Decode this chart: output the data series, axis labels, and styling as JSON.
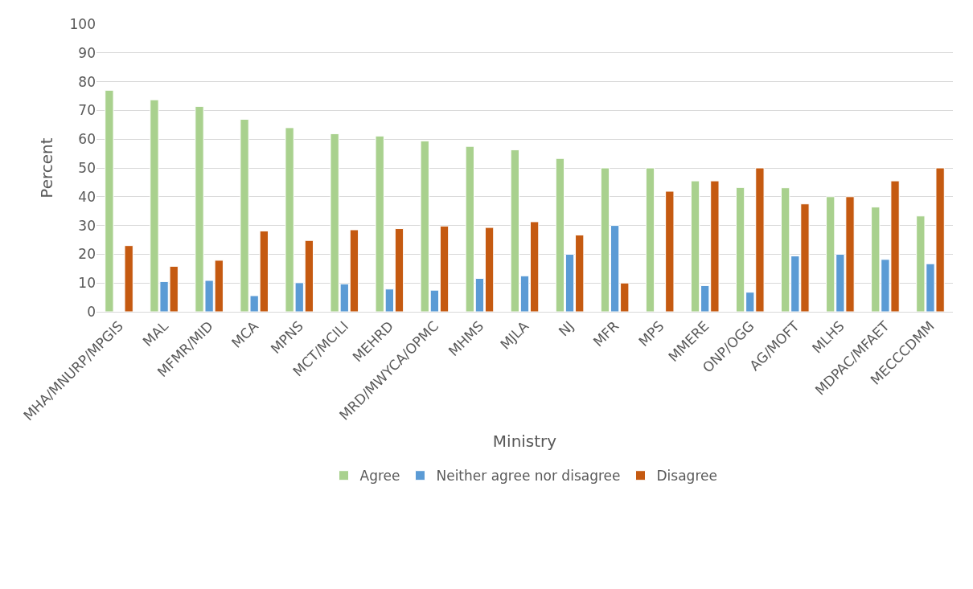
{
  "chart_data": {
    "type": "bar",
    "xlabel": "Ministry",
    "ylabel": "Percent",
    "categories": [
      "MHA/MNURP/MPGIS",
      "MAL",
      "MFMR/MID",
      "MCA",
      "MPNS",
      "MCT/MCILI",
      "MEHRD",
      "MRD/MWYCA/OPMC",
      "MHMS",
      "MJLA",
      "NJ",
      "MFR",
      "MPS",
      "MMERE",
      "ONP/OGG",
      "AG/MOFT",
      "MLHS",
      "MDPAC/MFAET",
      "MECCCDMM"
    ],
    "series": [
      {
        "name": "Agree",
        "color": "#a9d18e",
        "values": [
          77,
          73.7,
          71.4,
          66.9,
          64,
          61.9,
          61.1,
          59.4,
          57.5,
          56.3,
          53.3,
          50,
          50,
          45.5,
          43.2,
          43.1,
          40,
          36.4,
          33.3
        ]
      },
      {
        "name": "Neither agree nor disagree",
        "color": "#5b9bd5",
        "values": [
          null,
          10.5,
          10.9,
          5.6,
          10.1,
          9.7,
          7.9,
          7.5,
          11.6,
          12.5,
          20,
          30,
          null,
          9.1,
          6.8,
          19.4,
          20,
          18.2,
          16.7
        ]
      },
      {
        "name": "Disagree",
        "color": "#c55a11",
        "values": [
          23,
          15.8,
          17.9,
          28.1,
          24.8,
          28.5,
          28.9,
          29.8,
          29.3,
          31.3,
          26.7,
          10,
          41.9,
          45.5,
          50,
          37.5,
          40,
          45.5,
          50
        ]
      }
    ],
    "ylim": [
      0,
      100
    ],
    "yticks": [
      0,
      10,
      20,
      30,
      40,
      50,
      60,
      70,
      80,
      90,
      100
    ],
    "grid": "y",
    "legend": "bottom"
  }
}
